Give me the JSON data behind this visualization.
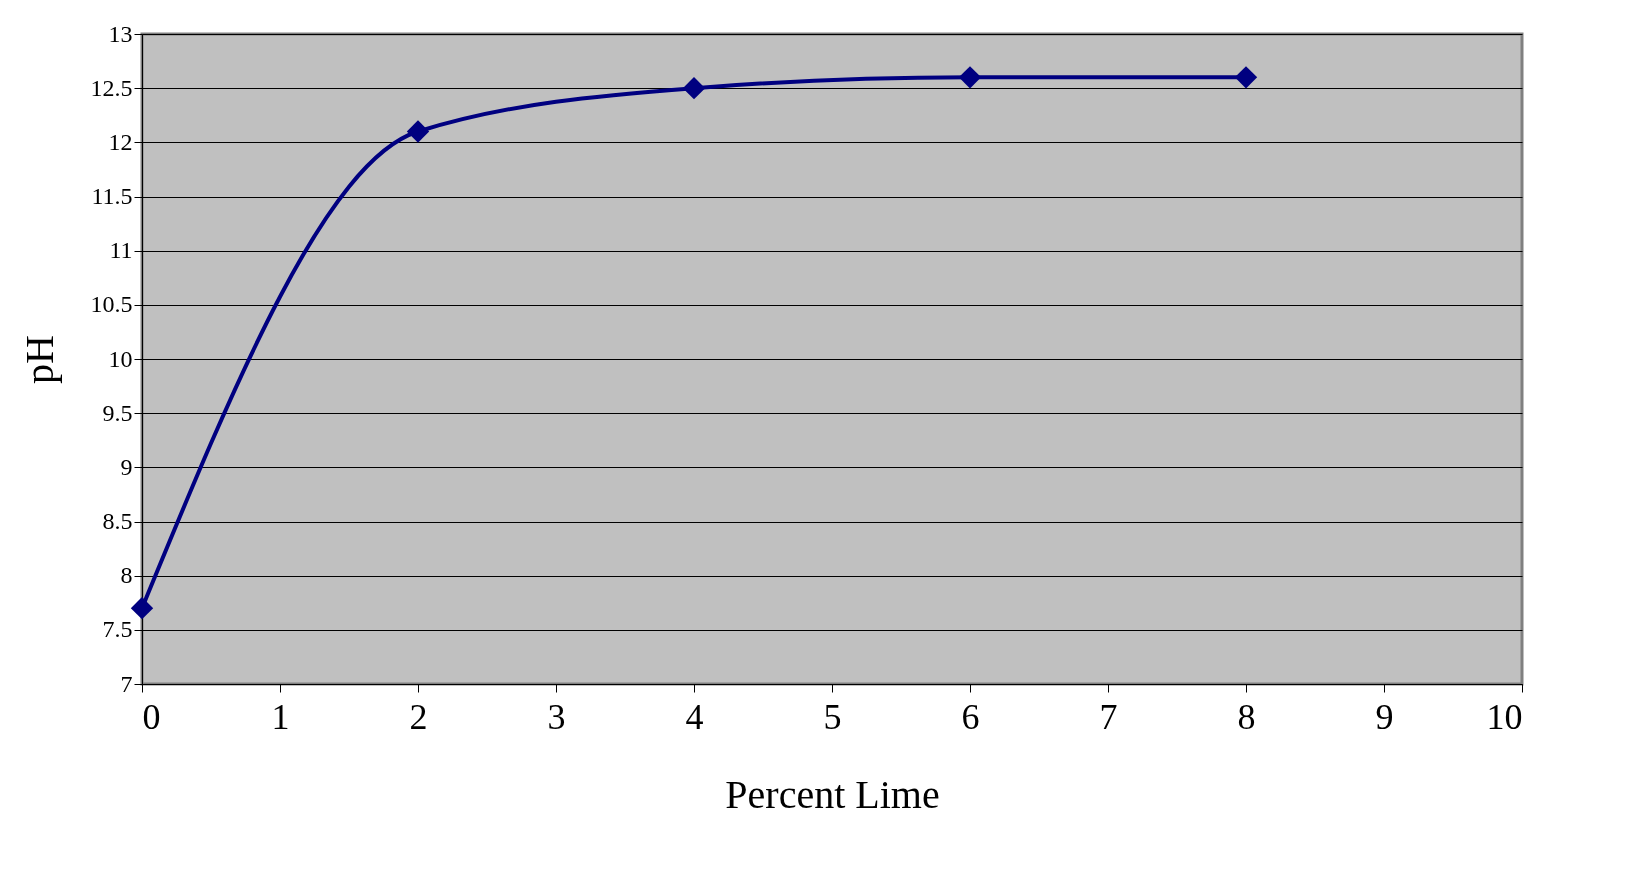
{
  "chart_data": {
    "type": "line",
    "xlabel": "Percent Lime",
    "ylabel": "pH",
    "x": [
      0,
      2,
      4,
      6,
      8
    ],
    "series": [
      {
        "color": "#000080",
        "values": [
          7.7,
          12.1,
          12.5,
          12.6,
          12.6
        ]
      }
    ],
    "xlim": [
      0,
      10
    ],
    "xticks": [
      0,
      1,
      2,
      3,
      4,
      5,
      6,
      7,
      8,
      9,
      10
    ],
    "ylim": [
      7,
      13
    ],
    "yticks": [
      7,
      7.5,
      8,
      8.5,
      9,
      9.5,
      10,
      10.5,
      11,
      11.5,
      12,
      12.5,
      13
    ],
    "grid": "y",
    "marker": "diamond",
    "line_style": "solid"
  }
}
